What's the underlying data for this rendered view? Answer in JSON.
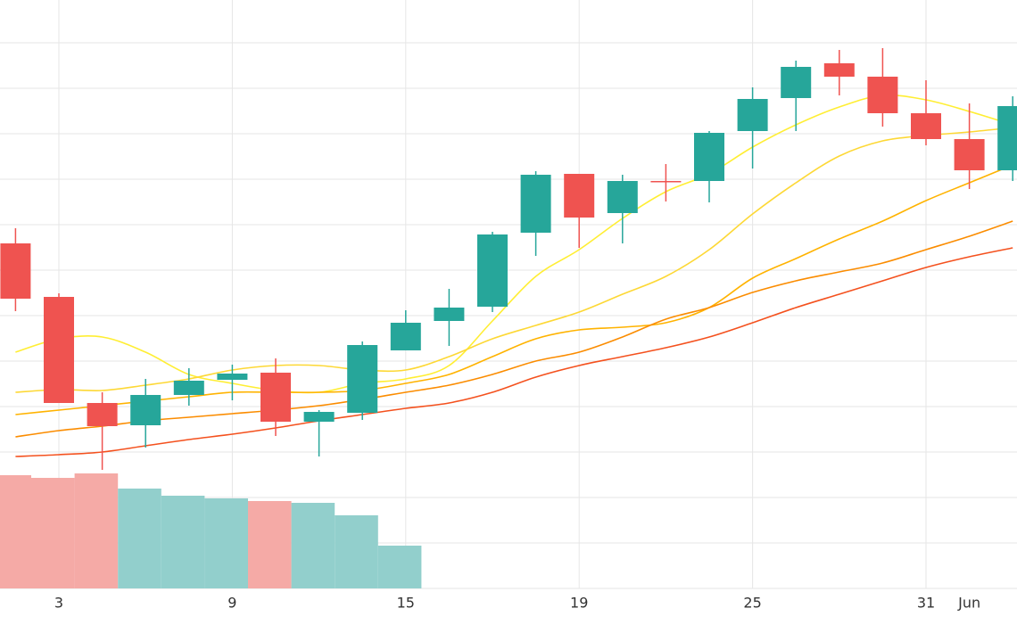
{
  "chart_data": {
    "type": "candlestick",
    "categories": [
      null,
      "3",
      null,
      null,
      null,
      "9",
      null,
      null,
      null,
      "15",
      null,
      null,
      null,
      "19",
      null,
      null,
      null,
      "25",
      null,
      null,
      null,
      "31",
      "Jun",
      null
    ],
    "open": [
      387,
      327,
      208,
      183,
      217,
      234,
      242,
      187,
      197,
      267,
      300,
      316,
      399,
      465,
      421,
      457,
      457,
      513,
      550,
      589,
      574,
      533,
      504,
      469
    ],
    "high": [
      404,
      331,
      220,
      235,
      247,
      251,
      258,
      200,
      277,
      312,
      336,
      400,
      468,
      465,
      464,
      476,
      513,
      562,
      592,
      604,
      606,
      570,
      544,
      552
    ],
    "low": [
      311,
      208,
      133,
      158,
      205,
      211,
      171,
      148,
      189,
      267,
      272,
      310,
      373,
      382,
      387,
      434,
      433,
      471,
      513,
      553,
      518,
      497,
      448,
      457
    ],
    "close": [
      325,
      208,
      182,
      217,
      233,
      241,
      187,
      198,
      273,
      298,
      315,
      397,
      464,
      416,
      457,
      456,
      511,
      549,
      585,
      574,
      533,
      504,
      469,
      541
    ],
    "up_color": "#26a69a",
    "down_color": "#ef5350",
    "volume": {
      "values": [
        127,
        124,
        129,
        112,
        104,
        101,
        98,
        96,
        82,
        48,
        null,
        null,
        null,
        null,
        null,
        null,
        null,
        null,
        null,
        null,
        null,
        null,
        null,
        null
      ],
      "up_color": "#92cfcc",
      "down_color": "#f5aaa6"
    },
    "lines": [
      {
        "color": "#ffee33",
        "values": [
          265,
          280,
          282,
          265,
          240,
          230,
          222,
          220,
          230,
          235,
          250,
          300,
          350,
          380,
          415,
          445,
          465,
          495,
          520,
          540,
          553,
          548,
          535,
          520
        ]
      },
      {
        "color": "#fdd835",
        "values": [
          220,
          223,
          222,
          228,
          235,
          245,
          250,
          250,
          245,
          245,
          260,
          280,
          295,
          310,
          330,
          350,
          380,
          420,
          455,
          485,
          502,
          508,
          512,
          517
        ]
      },
      {
        "color": "#ffb300",
        "values": [
          195,
          200,
          205,
          210,
          215,
          220,
          220,
          220,
          222,
          230,
          240,
          260,
          280,
          290,
          293,
          298,
          315,
          348,
          370,
          392,
          412,
          435,
          455,
          475
        ]
      },
      {
        "color": "#fb8c00",
        "values": [
          170,
          177,
          182,
          188,
          192,
          196,
          200,
          205,
          212,
          220,
          228,
          240,
          255,
          265,
          282,
          302,
          315,
          332,
          345,
          355,
          365,
          380,
          395,
          412
        ]
      },
      {
        "color": "#f4511e",
        "values": [
          148,
          150,
          153,
          160,
          167,
          173,
          180,
          188,
          195,
          202,
          208,
          220,
          237,
          250,
          260,
          270,
          282,
          298,
          315,
          330,
          345,
          360,
          372,
          382
        ]
      }
    ],
    "ylim": [
      0,
      660
    ],
    "yticks": [
      0,
      51,
      102,
      153,
      204,
      255,
      306,
      357,
      408,
      459,
      510,
      561,
      612
    ],
    "grid": true
  }
}
